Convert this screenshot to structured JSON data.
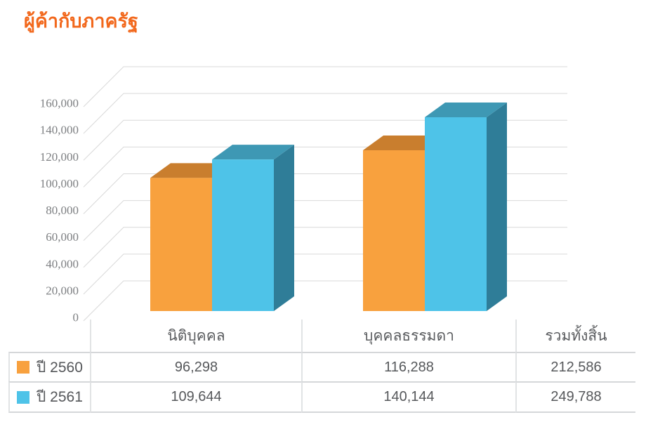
{
  "title": "ผู้ค้ากับภาครัฐ",
  "colors": {
    "title": "#F2681C",
    "gridline": "#D9D9D9",
    "axis_text": "#7E8083",
    "table_border": "#D5D7D9",
    "series_2560_front": "#F8A13E",
    "series_2560_top": "#C97E2E",
    "series_2560_side": "#B06C26",
    "series_2561_front": "#4EC3E8",
    "series_2561_top": "#3E98B4",
    "series_2561_side": "#2F7D98"
  },
  "chart_data": {
    "type": "bar",
    "projection": "3d",
    "title": "ผู้ค้ากับภาครัฐ",
    "categories": [
      "นิติบุคคล",
      "บุคคลธรรมดา"
    ],
    "series": [
      {
        "name": "ปี 2560",
        "values": [
          96298,
          116288
        ],
        "color": "#F8A13E",
        "color_top": "#C97E2E",
        "color_side": "#B06C26"
      },
      {
        "name": "ปี 2561",
        "values": [
          109644,
          140144
        ],
        "color": "#4EC3E8",
        "color_top": "#3E98B4",
        "color_side": "#2F7D98"
      }
    ],
    "ylim": [
      0,
      160000
    ],
    "y_tick_step": 20000,
    "y_tick_labels": [
      "0",
      "20,000",
      "40,000",
      "60,000",
      "80,000",
      "100,000",
      "120,000",
      "140,000",
      "160,000"
    ],
    "grid": true,
    "legend_position": "table-rows-left"
  },
  "table": {
    "columns": [
      "นิติบุคคล",
      "บุคคลธรรมดา",
      "รวมทั้งสิ้น"
    ],
    "rows": [
      {
        "legend": "ปี 2560",
        "swatch_color": "#F8A13E",
        "values": [
          "96,298",
          "116,288",
          "212,586"
        ]
      },
      {
        "legend": "ปี 2561",
        "swatch_color": "#4EC3E8",
        "values": [
          "109,644",
          "140,144",
          "249,788"
        ]
      }
    ]
  }
}
